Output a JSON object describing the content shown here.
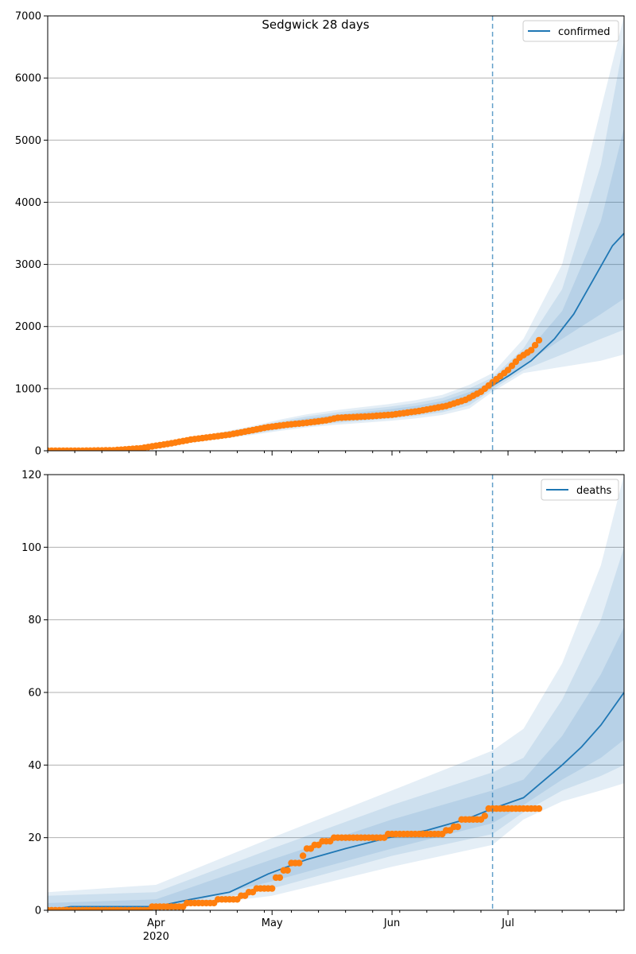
{
  "title": "Sedgwick 28 days",
  "x_ticks": [
    {
      "date": "2020-04-01",
      "label": "Apr",
      "sublabel": "2020"
    },
    {
      "date": "2020-05-01",
      "label": "May",
      "sublabel": ""
    },
    {
      "date": "2020-06-01",
      "label": "Jun",
      "sublabel": ""
    },
    {
      "date": "2020-07-01",
      "label": "Jul",
      "sublabel": ""
    }
  ],
  "chart_data": [
    {
      "type": "line",
      "series_label": "confirmed",
      "xlim": [
        "2020-03-04",
        "2020-07-31"
      ],
      "ylim": [
        0,
        7000
      ],
      "y_ticks": [
        0,
        1000,
        2000,
        3000,
        4000,
        5000,
        6000,
        7000
      ],
      "grid": "horizontal",
      "legend_position": "top-right",
      "forecast_start": "2020-06-27",
      "line_color": "#1f77b4",
      "point_color": "#ff7f0e",
      "model": [
        [
          "2020-03-04",
          0
        ],
        [
          "2020-03-15",
          3
        ],
        [
          "2020-03-22",
          15
        ],
        [
          "2020-03-29",
          45
        ],
        [
          "2020-04-05",
          110
        ],
        [
          "2020-04-12",
          180
        ],
        [
          "2020-04-19",
          250
        ],
        [
          "2020-04-26",
          320
        ],
        [
          "2020-05-03",
          400
        ],
        [
          "2020-05-10",
          470
        ],
        [
          "2020-05-17",
          520
        ],
        [
          "2020-05-24",
          560
        ],
        [
          "2020-05-31",
          600
        ],
        [
          "2020-06-07",
          650
        ],
        [
          "2020-06-14",
          720
        ],
        [
          "2020-06-21",
          850
        ],
        [
          "2020-06-27",
          1050
        ],
        [
          "2020-07-01",
          1200
        ],
        [
          "2020-07-07",
          1450
        ],
        [
          "2020-07-13",
          1800
        ],
        [
          "2020-07-18",
          2200
        ],
        [
          "2020-07-23",
          2750
        ],
        [
          "2020-07-28",
          3300
        ],
        [
          "2020-07-31",
          3500
        ]
      ],
      "bands": [
        {
          "upper": [
            [
              "2020-06-27",
              1250
            ],
            [
              "2020-07-05",
              1800
            ],
            [
              "2020-07-15",
              3000
            ],
            [
              "2020-07-25",
              5500
            ],
            [
              "2020-07-31",
              7000
            ]
          ],
          "lower": [
            [
              "2020-06-27",
              950
            ],
            [
              "2020-07-05",
              1250
            ],
            [
              "2020-07-15",
              1350
            ],
            [
              "2020-07-25",
              1450
            ],
            [
              "2020-07-31",
              1550
            ]
          ]
        },
        {
          "upper": [
            [
              "2020-06-27",
              1180
            ],
            [
              "2020-07-05",
              1650
            ],
            [
              "2020-07-15",
              2600
            ],
            [
              "2020-07-25",
              4600
            ],
            [
              "2020-07-31",
              6600
            ]
          ],
          "lower": [
            [
              "2020-06-27",
              990
            ],
            [
              "2020-07-05",
              1300
            ],
            [
              "2020-07-15",
              1550
            ],
            [
              "2020-07-25",
              1800
            ],
            [
              "2020-07-31",
              1950
            ]
          ]
        },
        {
          "upper": [
            [
              "2020-06-27",
              1120
            ],
            [
              "2020-07-05",
              1520
            ],
            [
              "2020-07-15",
              2250
            ],
            [
              "2020-07-25",
              3700
            ],
            [
              "2020-07-31",
              5200
            ]
          ],
          "lower": [
            [
              "2020-06-27",
              1020
            ],
            [
              "2020-07-05",
              1380
            ],
            [
              "2020-07-15",
              1800
            ],
            [
              "2020-07-25",
              2200
            ],
            [
              "2020-07-31",
              2450
            ]
          ]
        }
      ],
      "band_pre": {
        "upper_ratio": 1.25,
        "lower_ratio": 0.8
      },
      "observed": [
        [
          "2020-03-04",
          0
        ],
        [
          "2020-03-14",
          2
        ],
        [
          "2020-03-21",
          8
        ],
        [
          "2020-03-28",
          40
        ],
        [
          "2020-04-01",
          80
        ],
        [
          "2020-04-05",
          120
        ],
        [
          "2020-04-10",
          180
        ],
        [
          "2020-04-15",
          220
        ],
        [
          "2020-04-20",
          260
        ],
        [
          "2020-04-25",
          320
        ],
        [
          "2020-04-30",
          380
        ],
        [
          "2020-05-05",
          420
        ],
        [
          "2020-05-10",
          450
        ],
        [
          "2020-05-15",
          490
        ],
        [
          "2020-05-18",
          530
        ],
        [
          "2020-05-25",
          550
        ],
        [
          "2020-06-01",
          580
        ],
        [
          "2020-06-08",
          640
        ],
        [
          "2020-06-15",
          720
        ],
        [
          "2020-06-20",
          820
        ],
        [
          "2020-06-24",
          950
        ],
        [
          "2020-06-28",
          1150
        ],
        [
          "2020-07-01",
          1300
        ],
        [
          "2020-07-04",
          1500
        ],
        [
          "2020-07-07",
          1620
        ],
        [
          "2020-07-09",
          1780
        ]
      ]
    },
    {
      "type": "line",
      "series_label": "deaths",
      "xlim": [
        "2020-03-04",
        "2020-07-31"
      ],
      "ylim": [
        0,
        120
      ],
      "y_ticks": [
        0,
        20,
        40,
        60,
        80,
        100,
        120
      ],
      "grid": "horizontal",
      "legend_position": "top-right",
      "forecast_start": "2020-06-27",
      "line_color": "#1f77b4",
      "point_color": "#ff7f0e",
      "model": [
        [
          "2020-03-04",
          0
        ],
        [
          "2020-03-10",
          1
        ],
        [
          "2020-04-01",
          1
        ],
        [
          "2020-04-10",
          3
        ],
        [
          "2020-04-20",
          5
        ],
        [
          "2020-04-30",
          10
        ],
        [
          "2020-05-10",
          14
        ],
        [
          "2020-05-20",
          17
        ],
        [
          "2020-05-31",
          20
        ],
        [
          "2020-06-10",
          22
        ],
        [
          "2020-06-20",
          25
        ],
        [
          "2020-06-27",
          28
        ],
        [
          "2020-07-05",
          31
        ],
        [
          "2020-07-15",
          40
        ],
        [
          "2020-07-20",
          45
        ],
        [
          "2020-07-25",
          51
        ],
        [
          "2020-07-31",
          60
        ]
      ],
      "bands": [
        {
          "upper": [
            [
              "2020-03-04",
              5
            ],
            [
              "2020-04-01",
              7
            ],
            [
              "2020-05-01",
              20
            ],
            [
              "2020-06-01",
              33
            ],
            [
              "2020-06-27",
              44
            ],
            [
              "2020-07-05",
              50
            ],
            [
              "2020-07-15",
              68
            ],
            [
              "2020-07-25",
              95
            ],
            [
              "2020-07-31",
              120
            ]
          ],
          "lower": [
            [
              "2020-03-04",
              0
            ],
            [
              "2020-04-01",
              0
            ],
            [
              "2020-05-01",
              4
            ],
            [
              "2020-06-01",
              12
            ],
            [
              "2020-06-27",
              18
            ],
            [
              "2020-07-05",
              25
            ],
            [
              "2020-07-15",
              30
            ],
            [
              "2020-07-25",
              33
            ],
            [
              "2020-07-31",
              35
            ]
          ]
        },
        {
          "upper": [
            [
              "2020-03-04",
              4
            ],
            [
              "2020-04-01",
              5
            ],
            [
              "2020-05-01",
              17
            ],
            [
              "2020-06-01",
              29
            ],
            [
              "2020-06-27",
              38
            ],
            [
              "2020-07-05",
              42
            ],
            [
              "2020-07-15",
              58
            ],
            [
              "2020-07-25",
              80
            ],
            [
              "2020-07-31",
              100
            ]
          ],
          "lower": [
            [
              "2020-03-04",
              0
            ],
            [
              "2020-04-01",
              0
            ],
            [
              "2020-05-01",
              6
            ],
            [
              "2020-06-01",
              15
            ],
            [
              "2020-06-27",
              21
            ],
            [
              "2020-07-05",
              27
            ],
            [
              "2020-07-15",
              33
            ],
            [
              "2020-07-25",
              37
            ],
            [
              "2020-07-31",
              40
            ]
          ]
        },
        {
          "upper": [
            [
              "2020-03-04",
              2
            ],
            [
              "2020-04-01",
              3
            ],
            [
              "2020-05-01",
              14
            ],
            [
              "2020-06-01",
              25
            ],
            [
              "2020-06-27",
              33
            ],
            [
              "2020-07-05",
              36
            ],
            [
              "2020-07-15",
              48
            ],
            [
              "2020-07-25",
              65
            ],
            [
              "2020-07-31",
              78
            ]
          ],
          "lower": [
            [
              "2020-03-04",
              0
            ],
            [
              "2020-04-01",
              0
            ],
            [
              "2020-05-01",
              8
            ],
            [
              "2020-06-01",
              17
            ],
            [
              "2020-06-27",
              24
            ],
            [
              "2020-07-05",
              29
            ],
            [
              "2020-07-15",
              36
            ],
            [
              "2020-07-25",
              42
            ],
            [
              "2020-07-31",
              47
            ]
          ]
        }
      ],
      "observed": [
        [
          "2020-03-04",
          0
        ],
        [
          "2020-03-30",
          0
        ],
        [
          "2020-03-31",
          1
        ],
        [
          "2020-04-08",
          1
        ],
        [
          "2020-04-09",
          2
        ],
        [
          "2020-04-16",
          2
        ],
        [
          "2020-04-17",
          3
        ],
        [
          "2020-04-23",
          4
        ],
        [
          "2020-04-25",
          5
        ],
        [
          "2020-04-27",
          6
        ],
        [
          "2020-05-01",
          6
        ],
        [
          "2020-05-02",
          9
        ],
        [
          "2020-05-04",
          11
        ],
        [
          "2020-05-06",
          13
        ],
        [
          "2020-05-09",
          15
        ],
        [
          "2020-05-10",
          17
        ],
        [
          "2020-05-12",
          18
        ],
        [
          "2020-05-14",
          19
        ],
        [
          "2020-05-17",
          20
        ],
        [
          "2020-05-30",
          20
        ],
        [
          "2020-05-31",
          21
        ],
        [
          "2020-06-14",
          21
        ],
        [
          "2020-06-15",
          22
        ],
        [
          "2020-06-17",
          23
        ],
        [
          "2020-06-19",
          25
        ],
        [
          "2020-06-24",
          25
        ],
        [
          "2020-06-25",
          26
        ],
        [
          "2020-06-26",
          28
        ],
        [
          "2020-07-09",
          28
        ]
      ]
    }
  ]
}
